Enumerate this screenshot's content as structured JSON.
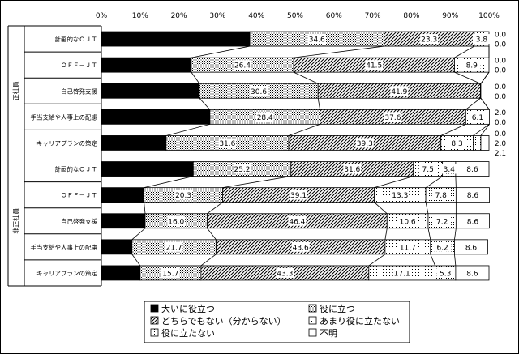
{
  "chart_data": {
    "type": "bar",
    "stacked": true,
    "orientation": "horizontal",
    "xlim": [
      0,
      100
    ],
    "x_ticks": [
      "0%",
      "10%",
      "20%",
      "30%",
      "40%",
      "50%",
      "60%",
      "70%",
      "80%",
      "90%",
      "100%"
    ],
    "groups": [
      "正社員",
      "非正社員"
    ],
    "categories": [
      "計画的なＯＪＴ",
      "ＯＦＦ－ＪＴ",
      "自己啓発支援",
      "手当支給や人事上の配慮",
      "キャリアプランの策定",
      "計画的なＯＪＴ",
      "ＯＦＦ－ＪＴ",
      "自己啓発支援",
      "手当支給や人事上の配慮",
      "キャリアプランの策定"
    ],
    "series": [
      {
        "name": "大いに役立つ",
        "color": "#000000",
        "pattern": "solid",
        "values": [
          38.3,
          23.2,
          25.3,
          28.0,
          16.7,
          23.7,
          11.0,
          11.3,
          7.9,
          10.0
        ]
      },
      {
        "name": "役に立つ",
        "color": "#ffffff",
        "pattern": "dots",
        "values": [
          34.6,
          26.4,
          30.6,
          28.4,
          31.6,
          25.2,
          20.3,
          16.0,
          21.7,
          15.7
        ]
      },
      {
        "name": "どちらでもない（分からない）",
        "color": "#ffffff",
        "pattern": "hatch",
        "values": [
          23.3,
          41.5,
          41.9,
          37.6,
          39.3,
          31.6,
          39.1,
          46.4,
          43.6,
          43.3
        ]
      },
      {
        "name": "あまり役に立たない",
        "color": "#ffffff",
        "pattern": "sparse-dots",
        "values": [
          3.8,
          8.9,
          0.1,
          6.1,
          8.3,
          7.5,
          13.3,
          10.6,
          11.7,
          17.1
        ]
      },
      {
        "name": "役に立たない",
        "color": "#ffffff",
        "pattern": "fine-dots",
        "values": [
          0.0,
          0.0,
          0.0,
          0.0,
          2.0,
          3.4,
          7.8,
          7.2,
          6.2,
          5.3
        ]
      },
      {
        "name": "不明",
        "color": "#ffffff",
        "pattern": "none",
        "values": [
          0.0,
          0.0,
          0.0,
          0.0,
          2.1,
          8.6,
          8.6,
          8.6,
          8.6,
          8.6
        ]
      }
    ],
    "outside_labels": [
      [
        "0.0",
        "0.0"
      ],
      [
        "0.0",
        "0.0"
      ],
      [
        "0.0",
        "0.0"
      ],
      [
        "2.0",
        "0.0"
      ],
      [
        "0.0",
        "2.0",
        "2.1"
      ],
      [],
      [],
      [],
      [],
      []
    ],
    "legend_placement": "bottom"
  }
}
